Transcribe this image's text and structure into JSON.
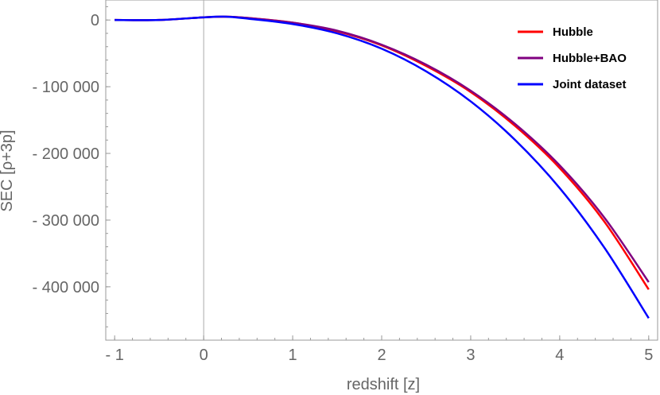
{
  "chart_data": {
    "type": "line",
    "xlabel": "redshift [z]",
    "ylabel": "SEC [ρ+3p]",
    "xlim": [
      -1.1,
      5.1
    ],
    "ylim": [
      -480000,
      30000
    ],
    "x_ticks": [
      {
        "value": -1,
        "label": "- 1"
      },
      {
        "value": 0,
        "label": "0"
      },
      {
        "value": 1,
        "label": "1"
      },
      {
        "value": 2,
        "label": "2"
      },
      {
        "value": 3,
        "label": "3"
      },
      {
        "value": 4,
        "label": "4"
      },
      {
        "value": 5,
        "label": "5"
      }
    ],
    "y_ticks": [
      {
        "value": 0,
        "label": "0"
      },
      {
        "value": -100000,
        "label": "- 100 000"
      },
      {
        "value": -200000,
        "label": "- 200 000"
      },
      {
        "value": -300000,
        "label": "- 300 000"
      },
      {
        "value": -400000,
        "label": "- 400 000"
      }
    ],
    "x_minor_step": 0.2,
    "y_minor_step": 20000,
    "legend_position": "top-right",
    "series": [
      {
        "name": "Hubble",
        "color": "#ff0000",
        "x": [
          -1,
          -0.5,
          0,
          0.25,
          0.5,
          1,
          1.5,
          2,
          2.5,
          3,
          3.5,
          4,
          4.5,
          5
        ],
        "y": [
          0,
          0,
          4000,
          5000,
          3000,
          -4000,
          -17000,
          -38000,
          -69000,
          -108000,
          -159000,
          -222000,
          -302000,
          -404000
        ]
      },
      {
        "name": "Hubble+BAO",
        "color": "#800080",
        "x": [
          -1,
          -0.5,
          0,
          0.25,
          0.5,
          1,
          1.5,
          2,
          2.5,
          3,
          3.5,
          4,
          4.5,
          5
        ],
        "y": [
          0,
          0,
          4000,
          5000,
          3000,
          -4000,
          -16000,
          -37000,
          -67000,
          -106000,
          -156000,
          -218000,
          -296000,
          -393000
        ]
      },
      {
        "name": "Joint dataset",
        "color": "#0000ff",
        "x": [
          -1,
          -0.5,
          0,
          0.25,
          0.5,
          1,
          1.5,
          2,
          2.5,
          3,
          3.5,
          4,
          4.5,
          5
        ],
        "y": [
          0,
          0,
          4000,
          5000,
          2000,
          -6000,
          -20000,
          -43000,
          -77000,
          -122000,
          -180000,
          -252000,
          -341000,
          -447000
        ]
      }
    ]
  }
}
